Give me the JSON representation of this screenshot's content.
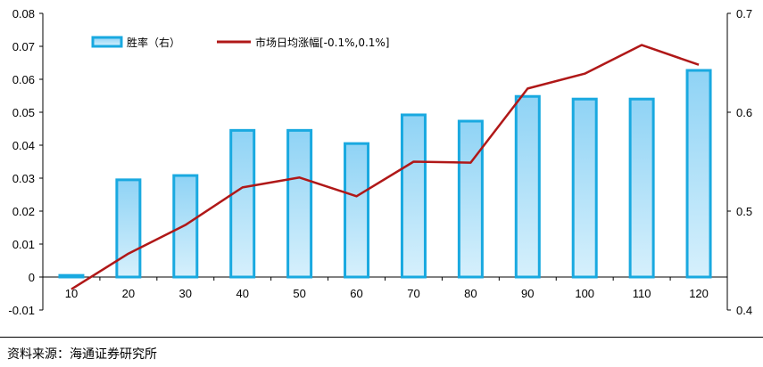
{
  "chart_data": {
    "type": "bar+line",
    "categories": [
      "10",
      "20",
      "30",
      "40",
      "50",
      "60",
      "70",
      "80",
      "90",
      "100",
      "110",
      "120"
    ],
    "series": [
      {
        "name": "胜率（右）",
        "type": "bar",
        "axis": "left",
        "values": [
          0.0005,
          0.0295,
          0.0308,
          0.0445,
          0.0445,
          0.0405,
          0.0492,
          0.0473,
          0.0548,
          0.054,
          0.054,
          0.0627
        ]
      },
      {
        "name": "市场日均涨幅[-0.1%,0.1%]",
        "type": "line",
        "axis": "right",
        "values": [
          0.421,
          0.457,
          0.486,
          0.524,
          0.534,
          0.515,
          0.55,
          0.549,
          0.624,
          0.639,
          0.668,
          0.648
        ]
      }
    ],
    "y_left": {
      "min": -0.01,
      "max": 0.08,
      "step": 0.01,
      "tick_labels": [
        "-0.01",
        "0",
        "0.01",
        "0.02",
        "0.03",
        "0.04",
        "0.05",
        "0.06",
        "0.07",
        "0.08"
      ]
    },
    "y_right": {
      "min": 0.4,
      "max": 0.7,
      "step": 0.1,
      "tick_labels": [
        "0.4",
        "0.5",
        "0.6",
        "0.7"
      ]
    },
    "legend_position": "top-left",
    "grid": false,
    "colors": {
      "bar_fill_top": "#8fd3f5",
      "bar_fill_bottom": "#d6f0fc",
      "bar_stroke": "#19a9e0",
      "line": "#b01818"
    }
  },
  "footer": {
    "source": "资料来源：海通证券研究所"
  }
}
